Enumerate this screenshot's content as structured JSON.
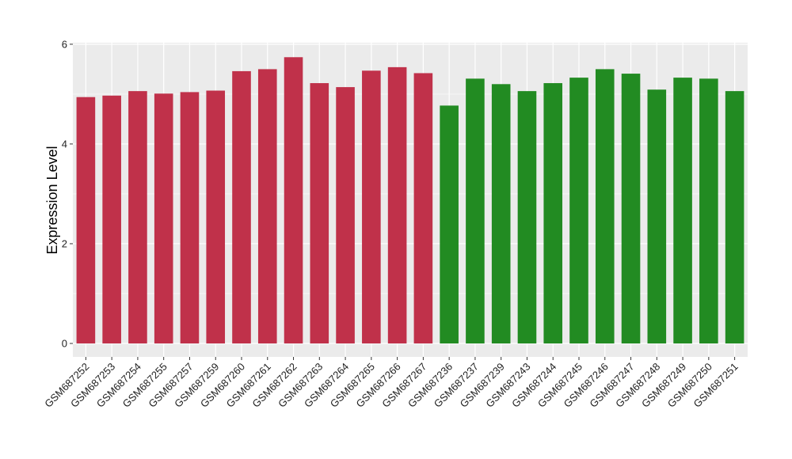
{
  "chart_data": {
    "type": "bar",
    "title": "",
    "xlabel": "",
    "ylabel": "Expression Level",
    "ylim": [
      -0.27,
      6.03
    ],
    "yticks": [
      0,
      2,
      4,
      6
    ],
    "grid": true,
    "legend": "none",
    "colors": {
      "group_1": "#c0314a",
      "group_2": "#228b22",
      "panel_bg": "#ebebeb",
      "grid": "#ffffff"
    },
    "categories": [
      "GSM687252",
      "GSM687253",
      "GSM687254",
      "GSM687255",
      "GSM687257",
      "GSM687259",
      "GSM687260",
      "GSM687261",
      "GSM687262",
      "GSM687263",
      "GSM687264",
      "GSM687265",
      "GSM687266",
      "GSM687267",
      "GSM687236",
      "GSM687237",
      "GSM687239",
      "GSM687243",
      "GSM687244",
      "GSM687245",
      "GSM687246",
      "GSM687247",
      "GSM687248",
      "GSM687249",
      "GSM687250",
      "GSM687251"
    ],
    "values": [
      4.94,
      4.97,
      5.06,
      5.01,
      5.04,
      5.07,
      5.46,
      5.5,
      5.74,
      5.22,
      5.14,
      5.47,
      5.54,
      5.42,
      4.77,
      5.31,
      5.2,
      5.06,
      5.22,
      5.33,
      5.5,
      5.41,
      5.09,
      5.33,
      5.31,
      5.06
    ],
    "groups": [
      1,
      1,
      1,
      1,
      1,
      1,
      1,
      1,
      1,
      1,
      1,
      1,
      1,
      1,
      2,
      2,
      2,
      2,
      2,
      2,
      2,
      2,
      2,
      2,
      2,
      2
    ]
  }
}
